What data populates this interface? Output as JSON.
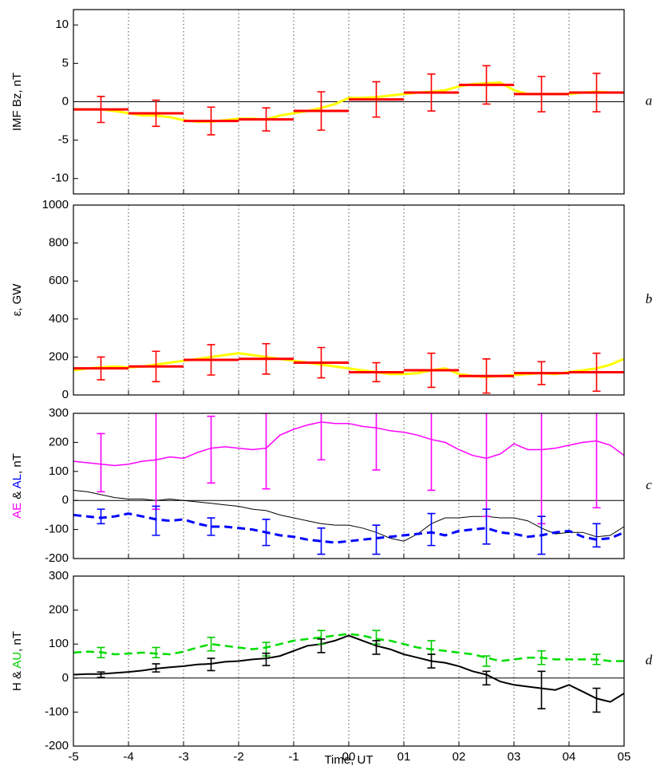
{
  "chart_data": [
    {
      "type": "line",
      "panel_label": "a",
      "ylabel_parts": [
        {
          "text": "IMF Bz, nT",
          "color": "#000000"
        }
      ],
      "xlim": [
        -5,
        5
      ],
      "xticks": [
        -5,
        -4,
        -3,
        -2,
        -1,
        {
          "value": 0,
          "label": "00"
        },
        {
          "value": 1,
          "label": "01"
        },
        {
          "value": 2,
          "label": "02"
        },
        {
          "value": 3,
          "label": "03"
        },
        {
          "value": 4,
          "label": "04"
        },
        {
          "value": 5,
          "label": "05"
        }
      ],
      "ylim": [
        -12,
        12
      ],
      "yticks": [
        -10,
        -5,
        0,
        5,
        10
      ],
      "grid": true,
      "zero_line": true,
      "x": [
        -5,
        -4.75,
        -4.5,
        -4.25,
        -4,
        -3.75,
        -3.5,
        -3.25,
        -3,
        -2.75,
        -2.5,
        -2.25,
        -2,
        -1.75,
        -1.5,
        -1.25,
        -1,
        -0.75,
        -0.5,
        -0.25,
        0,
        0.25,
        0.5,
        0.75,
        1,
        1.25,
        1.5,
        1.75,
        2,
        2.25,
        2.5,
        2.75,
        3,
        3.25,
        3.5,
        3.75,
        4,
        4.25,
        4.5,
        4.75,
        5
      ],
      "lines": [
        {
          "color": "#ffff00",
          "width": 3,
          "dashed": false,
          "values": [
            -1,
            -1,
            -1,
            -1.2,
            -1.5,
            -1.8,
            -1.8,
            -2,
            -2.4,
            -2.6,
            -2.6,
            -2.4,
            -2.2,
            -2.2,
            -2.3,
            -1.8,
            -1.5,
            -1.2,
            -0.8,
            -0.3,
            0.5,
            0.5,
            0.6,
            0.8,
            1,
            1.2,
            1.3,
            1.5,
            2,
            2.3,
            2.4,
            2.5,
            1.5,
            1,
            1,
            1,
            1,
            1.2,
            1.3,
            1.2,
            1.2
          ]
        }
      ],
      "errorbars": [
        {
          "color": "#ff0000",
          "bin_width": 1,
          "x": [
            -4.5,
            -3.5,
            -2.5,
            -1.5,
            -0.5,
            0.5,
            1.5,
            2.5,
            3.5,
            4.5
          ],
          "values": [
            -1,
            -1.5,
            -2.5,
            -2.3,
            -1.2,
            0.3,
            1.2,
            2.2,
            1,
            1.2
          ],
          "errors": [
            1.7,
            1.7,
            1.8,
            1.5,
            2.5,
            2.3,
            2.4,
            2.5,
            2.3,
            2.5
          ]
        }
      ]
    },
    {
      "type": "line",
      "panel_label": "b",
      "ylabel_parts": [
        {
          "text": "ε, GW",
          "color": "#000000"
        }
      ],
      "xlim": [
        -5,
        5
      ],
      "xticks": [
        -5,
        -4,
        -3,
        -2,
        -1,
        {
          "value": 0,
          "label": "00"
        },
        {
          "value": 1,
          "label": "01"
        },
        {
          "value": 2,
          "label": "02"
        },
        {
          "value": 3,
          "label": "03"
        },
        {
          "value": 4,
          "label": "04"
        },
        {
          "value": 5,
          "label": "05"
        }
      ],
      "ylim": [
        0,
        1000
      ],
      "yticks": [
        0,
        200,
        400,
        600,
        800,
        1000
      ],
      "grid": true,
      "zero_line": false,
      "x": [
        -5,
        -4.75,
        -4.5,
        -4.25,
        -4,
        -3.75,
        -3.5,
        -3.25,
        -3,
        -2.75,
        -2.5,
        -2.25,
        -2,
        -1.75,
        -1.5,
        -1.25,
        -1,
        -0.75,
        -0.5,
        -0.25,
        0,
        0.25,
        0.5,
        0.75,
        1,
        1.25,
        1.5,
        1.75,
        2,
        2.25,
        2.5,
        2.75,
        3,
        3.25,
        3.5,
        3.75,
        4,
        4.25,
        4.5,
        4.75,
        5
      ],
      "lines": [
        {
          "color": "#ffff00",
          "width": 3,
          "dashed": false,
          "values": [
            130,
            140,
            145,
            150,
            145,
            150,
            160,
            170,
            180,
            190,
            200,
            210,
            220,
            210,
            200,
            190,
            180,
            170,
            160,
            150,
            140,
            130,
            120,
            110,
            110,
            115,
            130,
            140,
            110,
            100,
            95,
            100,
            105,
            110,
            115,
            110,
            120,
            130,
            140,
            160,
            190
          ]
        }
      ],
      "errorbars": [
        {
          "color": "#ff0000",
          "bin_width": 1,
          "x": [
            -4.5,
            -3.5,
            -2.5,
            -1.5,
            -0.5,
            0.5,
            1.5,
            2.5,
            3.5,
            4.5
          ],
          "values": [
            140,
            150,
            185,
            190,
            170,
            120,
            130,
            100,
            115,
            120
          ],
          "errors": [
            60,
            80,
            80,
            80,
            80,
            50,
            90,
            90,
            60,
            100
          ]
        }
      ]
    },
    {
      "type": "line",
      "panel_label": "c",
      "ylabel_parts": [
        {
          "text": "AE",
          "color": "#ff00ff"
        },
        {
          "text": "&",
          "color": "#000000"
        },
        {
          "text": "AL",
          "color": "#0000ff"
        },
        {
          "text": ", nT",
          "color": "#000000"
        }
      ],
      "xlim": [
        -5,
        5
      ],
      "xticks": [
        -5,
        -4,
        -3,
        -2,
        -1,
        {
          "value": 0,
          "label": "00"
        },
        {
          "value": 1,
          "label": "01"
        },
        {
          "value": 2,
          "label": "02"
        },
        {
          "value": 3,
          "label": "03"
        },
        {
          "value": 4,
          "label": "04"
        },
        {
          "value": 5,
          "label": "05"
        }
      ],
      "ylim": [
        -200,
        300
      ],
      "yticks": [
        -200,
        -100,
        0,
        100,
        200,
        300
      ],
      "grid": true,
      "zero_line": true,
      "x": [
        -5,
        -4.75,
        -4.5,
        -4.25,
        -4,
        -3.75,
        -3.5,
        -3.25,
        -3,
        -2.75,
        -2.5,
        -2.25,
        -2,
        -1.75,
        -1.5,
        -1.25,
        -1,
        -0.75,
        -0.5,
        -0.25,
        0,
        0.25,
        0.5,
        0.75,
        1,
        1.25,
        1.5,
        1.75,
        2,
        2.25,
        2.5,
        2.75,
        3,
        3.25,
        3.5,
        3.75,
        4,
        4.25,
        4.5,
        4.75,
        5
      ],
      "lines": [
        {
          "color": "#ff00ff",
          "width": 1.5,
          "dashed": false,
          "values": [
            135,
            130,
            125,
            120,
            125,
            135,
            140,
            150,
            145,
            165,
            180,
            185,
            180,
            175,
            180,
            225,
            245,
            260,
            270,
            265,
            265,
            255,
            250,
            240,
            235,
            225,
            210,
            200,
            175,
            155,
            145,
            160,
            195,
            175,
            175,
            180,
            190,
            200,
            205,
            190,
            155
          ]
        },
        {
          "color": "#000000",
          "width": 1,
          "dashed": false,
          "values": [
            35,
            30,
            20,
            10,
            5,
            5,
            0,
            5,
            0,
            -5,
            -10,
            -15,
            -20,
            -30,
            -35,
            -50,
            -60,
            -70,
            -80,
            -85,
            -85,
            -95,
            -110,
            -130,
            -140,
            -115,
            -80,
            -60,
            -60,
            -55,
            -55,
            -60,
            -60,
            -70,
            -95,
            -115,
            -110,
            -110,
            -125,
            -120,
            -90
          ]
        },
        {
          "color": "#0000ff",
          "width": 3,
          "dashed": true,
          "values": [
            -50,
            -55,
            -60,
            -55,
            -45,
            -55,
            -65,
            -70,
            -65,
            -80,
            -90,
            -90,
            -95,
            -100,
            -110,
            -120,
            -125,
            -135,
            -140,
            -145,
            -140,
            -135,
            -130,
            -125,
            -120,
            -115,
            -110,
            -120,
            -105,
            -100,
            -95,
            -110,
            -115,
            -125,
            -120,
            -110,
            -105,
            -125,
            -135,
            -130,
            -110
          ]
        }
      ],
      "errorbars": [
        {
          "color": "#ff00ff",
          "bin_width": 0,
          "x": [
            -4.5,
            -3.5,
            -2.5,
            -1.5,
            -0.5,
            0.5,
            1.5,
            2.5,
            3.5,
            4.5
          ],
          "values": [
            130,
            140,
            175,
            170,
            270,
            255,
            200,
            145,
            170,
            200
          ],
          "errors": [
            100,
            170,
            115,
            130,
            130,
            150,
            165,
            200,
            250,
            225
          ]
        },
        {
          "color": "#0000ff",
          "bin_width": 0,
          "x": [
            -4.5,
            -3.5,
            -2.5,
            -1.5,
            -0.5,
            0.5,
            1.5,
            2.5,
            3.5,
            4.5
          ],
          "values": [
            -55,
            -70,
            -90,
            -110,
            -140,
            -135,
            -100,
            -90,
            -120,
            -120
          ],
          "errors": [
            25,
            50,
            30,
            45,
            45,
            50,
            55,
            60,
            65,
            40
          ]
        }
      ]
    },
    {
      "type": "line",
      "panel_label": "d",
      "ylabel_parts": [
        {
          "text": "H",
          "color": "#000000"
        },
        {
          "text": "&",
          "color": "#000000"
        },
        {
          "text": "AU",
          "color": "#00cc00"
        },
        {
          "text": ", nT",
          "color": "#000000"
        }
      ],
      "xlabel": "Time, UT",
      "xlim": [
        -5,
        5
      ],
      "xticks": [
        -5,
        -4,
        -3,
        -2,
        -1,
        {
          "value": 0,
          "label": "00"
        },
        {
          "value": 1,
          "label": "01"
        },
        {
          "value": 2,
          "label": "02"
        },
        {
          "value": 3,
          "label": "03"
        },
        {
          "value": 4,
          "label": "04"
        },
        {
          "value": 5,
          "label": "05"
        }
      ],
      "ylim": [
        -200,
        300
      ],
      "yticks": [
        -200,
        -100,
        0,
        100,
        200,
        300
      ],
      "grid": true,
      "zero_line": true,
      "x": [
        -5,
        -4.75,
        -4.5,
        -4.25,
        -4,
        -3.75,
        -3.5,
        -3.25,
        -3,
        -2.75,
        -2.5,
        -2.25,
        -2,
        -1.75,
        -1.5,
        -1.25,
        -1,
        -0.75,
        -0.5,
        -0.25,
        0,
        0.25,
        0.5,
        0.75,
        1,
        1.25,
        1.5,
        1.75,
        2,
        2.25,
        2.5,
        2.75,
        3,
        3.25,
        3.5,
        3.75,
        4,
        4.25,
        4.5,
        4.75,
        5
      ],
      "lines": [
        {
          "color": "#00dd00",
          "width": 2.5,
          "dashed": true,
          "values": [
            75,
            78,
            76,
            70,
            72,
            75,
            72,
            70,
            78,
            90,
            100,
            95,
            90,
            85,
            90,
            100,
            110,
            115,
            120,
            125,
            130,
            125,
            115,
            110,
            100,
            90,
            85,
            80,
            75,
            70,
            60,
            50,
            55,
            60,
            60,
            55,
            55,
            55,
            55,
            50,
            50
          ]
        },
        {
          "color": "#000000",
          "width": 2,
          "dashed": false,
          "values": [
            10,
            12,
            12,
            15,
            18,
            22,
            28,
            32,
            35,
            40,
            42,
            48,
            50,
            55,
            58,
            65,
            80,
            95,
            100,
            110,
            125,
            110,
            95,
            85,
            70,
            60,
            50,
            45,
            35,
            20,
            10,
            -10,
            -20,
            -25,
            -30,
            -35,
            -20,
            -40,
            -60,
            -70,
            -45
          ]
        }
      ],
      "errorbars": [
        {
          "color": "#00cc00",
          "bin_width": 0,
          "x": [
            -4.5,
            -3.5,
            -2.5,
            -1.5,
            -0.5,
            0.5,
            1.5,
            2.5,
            3.5,
            4.5
          ],
          "values": [
            75,
            75,
            100,
            85,
            120,
            120,
            90,
            50,
            60,
            55
          ],
          "errors": [
            15,
            15,
            20,
            20,
            20,
            20,
            20,
            15,
            20,
            15
          ]
        },
        {
          "color": "#000000",
          "bin_width": 0,
          "x": [
            -4.5,
            -3.5,
            -2.5,
            -1.5,
            -0.5,
            0.5,
            1.5,
            2.5,
            3.5,
            4.5
          ],
          "values": [
            10,
            30,
            40,
            55,
            95,
            90,
            50,
            0,
            -35,
            -65
          ],
          "errors": [
            8,
            12,
            18,
            18,
            20,
            20,
            20,
            20,
            55,
            35
          ]
        }
      ]
    }
  ]
}
